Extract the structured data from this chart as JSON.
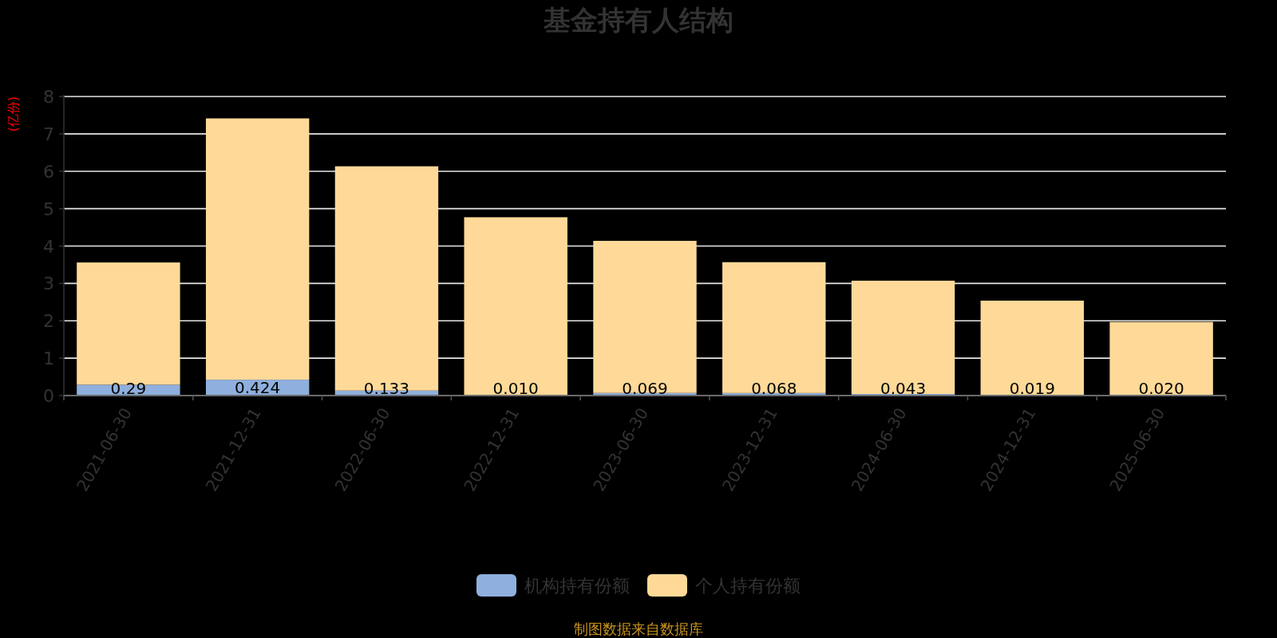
{
  "chart_data": {
    "type": "bar",
    "title": "基金持有人结构",
    "ylabel": "(亿份)",
    "categories": [
      "2021-06-30",
      "2021-12-31",
      "2022-06-30",
      "2022-12-31",
      "2023-06-30",
      "2023-12-31",
      "2024-06-30",
      "2024-12-31",
      "2025-06-30"
    ],
    "series": [
      {
        "name": "机构持有份额",
        "color": "#8fb0de",
        "values": [
          0.29,
          0.424,
          0.133,
          0.01,
          0.069,
          0.068,
          0.043,
          0.019,
          0.02
        ],
        "value_labels": [
          "0.29",
          "0.424",
          "0.133",
          "0.010",
          "0.069",
          "0.068",
          "0.043",
          "0.019",
          "0.020"
        ]
      },
      {
        "name": "个人持有份额",
        "color": "#ffd998",
        "values": [
          3.27,
          6.99,
          6.0,
          4.76,
          4.07,
          3.5,
          3.03,
          2.52,
          1.95
        ]
      }
    ],
    "stacked": true,
    "ylim": [
      0,
      8
    ],
    "yticks": [
      0,
      1,
      2,
      3,
      4,
      5,
      6,
      7,
      8
    ],
    "grid": "y",
    "legend": "bottom",
    "annotations": [
      "制图数据来自数据库"
    ]
  }
}
